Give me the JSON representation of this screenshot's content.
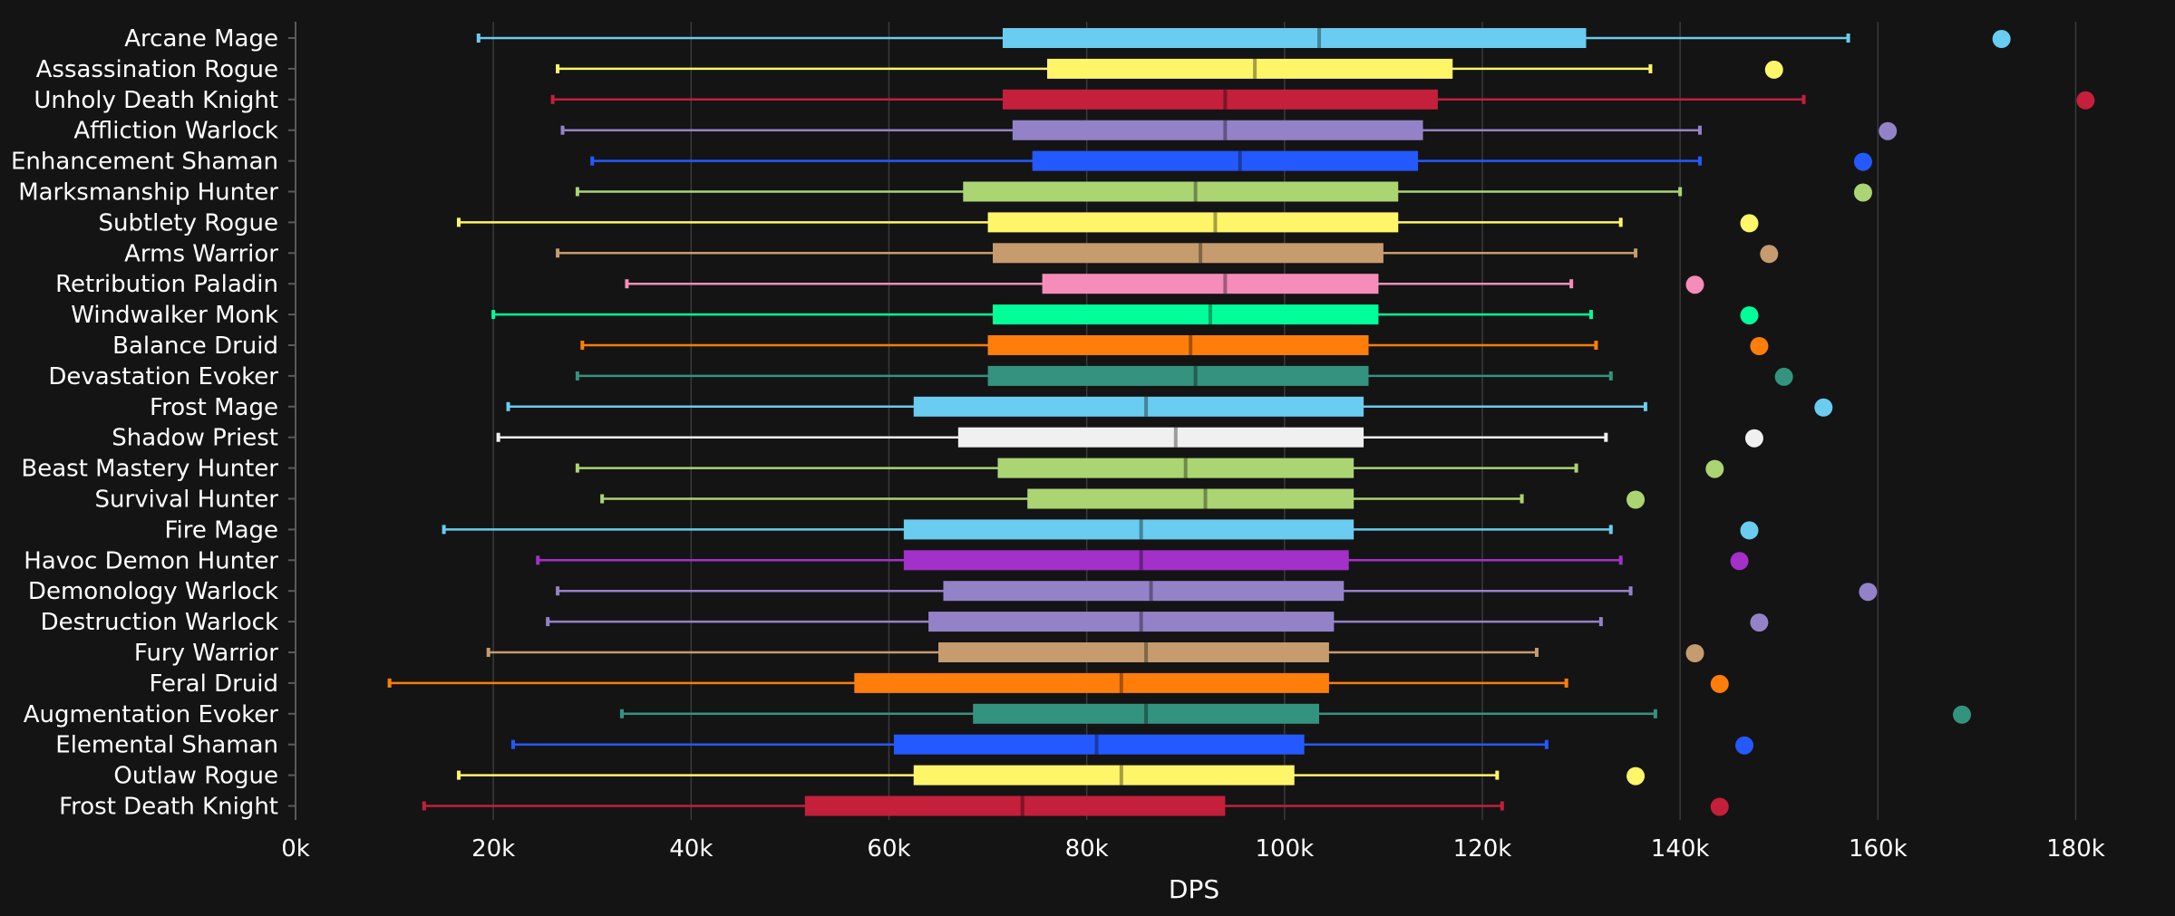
{
  "chart_data": {
    "type": "box",
    "xlabel": "DPS",
    "xlim": [
      0,
      185000
    ],
    "xticks": [
      {
        "value": 0,
        "label": "0k"
      },
      {
        "value": 20000,
        "label": "20k"
      },
      {
        "value": 40000,
        "label": "40k"
      },
      {
        "value": 60000,
        "label": "60k"
      },
      {
        "value": 80000,
        "label": "80k"
      },
      {
        "value": 100000,
        "label": "100k"
      },
      {
        "value": 120000,
        "label": "120k"
      },
      {
        "value": 140000,
        "label": "140k"
      },
      {
        "value": 160000,
        "label": "160k"
      },
      {
        "value": 180000,
        "label": "180k"
      }
    ],
    "grid": true,
    "series": [
      {
        "name": "Arcane Mage",
        "color": "#69ccf0",
        "min": 18500,
        "q1": 71500,
        "median": 103500,
        "q3": 130500,
        "max": 157000,
        "outlier": 172500
      },
      {
        "name": "Assassination Rogue",
        "color": "#fff569",
        "min": 26500,
        "q1": 76000,
        "median": 97000,
        "q3": 117000,
        "max": 137000,
        "outlier": 149500
      },
      {
        "name": "Unholy Death Knight",
        "color": "#c41f3b",
        "min": 26000,
        "q1": 71500,
        "median": 94000,
        "q3": 115500,
        "max": 152500,
        "outlier": 181000
      },
      {
        "name": "Affliction Warlock",
        "color": "#9482c9",
        "min": 27000,
        "q1": 72500,
        "median": 94000,
        "q3": 114000,
        "max": 142000,
        "outlier": 161000
      },
      {
        "name": "Enhancement Shaman",
        "color": "#2459ff",
        "min": 30000,
        "q1": 74500,
        "median": 95500,
        "q3": 113500,
        "max": 142000,
        "outlier": 158500
      },
      {
        "name": "Marksmanship Hunter",
        "color": "#abd473",
        "min": 28500,
        "q1": 67500,
        "median": 91000,
        "q3": 111500,
        "max": 140000,
        "outlier": 158500
      },
      {
        "name": "Subtlety Rogue",
        "color": "#fff569",
        "min": 16500,
        "q1": 70000,
        "median": 93000,
        "q3": 111500,
        "max": 134000,
        "outlier": 147000
      },
      {
        "name": "Arms Warrior",
        "color": "#c69b6d",
        "min": 26500,
        "q1": 70500,
        "median": 91500,
        "q3": 110000,
        "max": 135500,
        "outlier": 149000
      },
      {
        "name": "Retribution Paladin",
        "color": "#f58cba",
        "min": 33500,
        "q1": 75500,
        "median": 94000,
        "q3": 109500,
        "max": 129000,
        "outlier": 141500
      },
      {
        "name": "Windwalker Monk",
        "color": "#00ff98",
        "min": 20000,
        "q1": 70500,
        "median": 92500,
        "q3": 109500,
        "max": 131000,
        "outlier": 147000
      },
      {
        "name": "Balance Druid",
        "color": "#ff7d0a",
        "min": 29000,
        "q1": 70000,
        "median": 90500,
        "q3": 108500,
        "max": 131500,
        "outlier": 148000
      },
      {
        "name": "Devastation Evoker",
        "color": "#33937f",
        "min": 28500,
        "q1": 70000,
        "median": 91000,
        "q3": 108500,
        "max": 133000,
        "outlier": 150500
      },
      {
        "name": "Frost Mage",
        "color": "#69ccf0",
        "min": 21500,
        "q1": 62500,
        "median": 86000,
        "q3": 108000,
        "max": 136500,
        "outlier": 154500
      },
      {
        "name": "Shadow Priest",
        "color": "#f0f0f0",
        "min": 20500,
        "q1": 67000,
        "median": 89000,
        "q3": 108000,
        "max": 132500,
        "outlier": 147500
      },
      {
        "name": "Beast Mastery Hunter",
        "color": "#abd473",
        "min": 28500,
        "q1": 71000,
        "median": 90000,
        "q3": 107000,
        "max": 129500,
        "outlier": 143500
      },
      {
        "name": "Survival Hunter",
        "color": "#abd473",
        "min": 31000,
        "q1": 74000,
        "median": 92000,
        "q3": 107000,
        "max": 124000,
        "outlier": 135500
      },
      {
        "name": "Fire Mage",
        "color": "#69ccf0",
        "min": 15000,
        "q1": 61500,
        "median": 85500,
        "q3": 107000,
        "max": 133000,
        "outlier": 147000
      },
      {
        "name": "Havoc Demon Hunter",
        "color": "#a330c9",
        "min": 24500,
        "q1": 61500,
        "median": 85500,
        "q3": 106500,
        "max": 134000,
        "outlier": 146000
      },
      {
        "name": "Demonology Warlock",
        "color": "#9482c9",
        "min": 26500,
        "q1": 65500,
        "median": 86500,
        "q3": 106000,
        "max": 135000,
        "outlier": 159000
      },
      {
        "name": "Destruction Warlock",
        "color": "#9482c9",
        "min": 25500,
        "q1": 64000,
        "median": 85500,
        "q3": 105000,
        "max": 132000,
        "outlier": 148000
      },
      {
        "name": "Fury Warrior",
        "color": "#c69b6d",
        "min": 19500,
        "q1": 65000,
        "median": 86000,
        "q3": 104500,
        "max": 125500,
        "outlier": 141500
      },
      {
        "name": "Feral Druid",
        "color": "#ff7d0a",
        "min": 9500,
        "q1": 56500,
        "median": 83500,
        "q3": 104500,
        "max": 128500,
        "outlier": 144000
      },
      {
        "name": "Augmentation Evoker",
        "color": "#33937f",
        "min": 33000,
        "q1": 68500,
        "median": 86000,
        "q3": 103500,
        "max": 137500,
        "outlier": 168500
      },
      {
        "name": "Elemental Shaman",
        "color": "#2459ff",
        "min": 22000,
        "q1": 60500,
        "median": 81000,
        "q3": 102000,
        "max": 126500,
        "outlier": 146500
      },
      {
        "name": "Outlaw Rogue",
        "color": "#fff569",
        "min": 16500,
        "q1": 62500,
        "median": 83500,
        "q3": 101000,
        "max": 121500,
        "outlier": 135500
      },
      {
        "name": "Frost Death Knight",
        "color": "#c41f3b",
        "min": 13000,
        "q1": 51500,
        "median": 73500,
        "q3": 94000,
        "max": 122000,
        "outlier": 144000
      }
    ]
  }
}
